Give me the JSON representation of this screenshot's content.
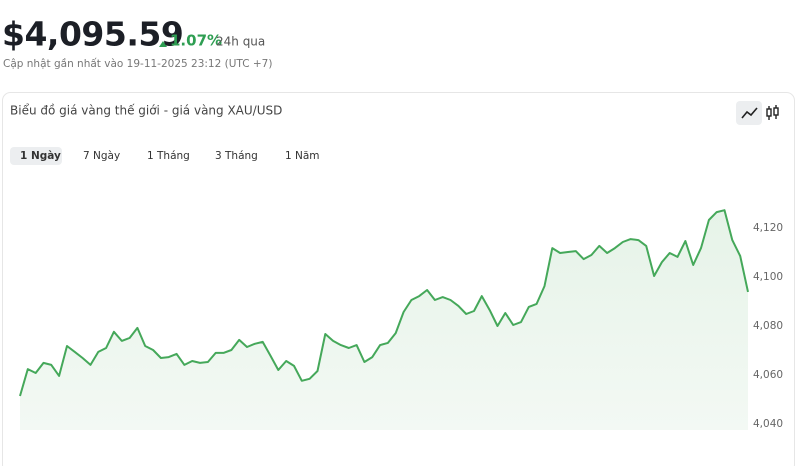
{
  "header": {
    "price": "$4,095.59",
    "change": "1.07%",
    "period": "24h qua",
    "updated": "Cập nhật gần nhất vào 19-11-2025 23:12 (UTC +7)"
  },
  "card": {
    "title": "Biểu đồ giá vàng thế giới - giá vàng XAU/USD",
    "tabs": [
      "1 Ngày",
      "7 Ngày",
      "1 Tháng",
      "3 Tháng",
      "1 Năm"
    ]
  },
  "chart_data": {
    "type": "line",
    "color": "#45a85a",
    "grid": false,
    "values": [
      4051.4,
      4062.4,
      4060.8,
      4064.9,
      4064.1,
      4059.6,
      4071.8,
      4069.4,
      4066.9,
      4064.1,
      4069.4,
      4071.0,
      4077.6,
      4073.9,
      4075.1,
      4079.2,
      4071.8,
      4070.2,
      4066.9,
      4067.3,
      4068.6,
      4064.1,
      4065.7,
      4064.9,
      4065.3,
      4069.0,
      4069.0,
      4070.2,
      4074.3,
      4071.4,
      4072.7,
      4073.5,
      4067.8,
      4062.0,
      4065.7,
      4063.7,
      4057.6,
      4058.4,
      4061.6,
      4076.7,
      4073.9,
      4072.2,
      4071.0,
      4072.2,
      4065.3,
      4067.3,
      4072.2,
      4073.1,
      4077.1,
      4085.7,
      4090.6,
      4092.2,
      4094.7,
      4090.6,
      4091.8,
      4090.6,
      4088.2,
      4084.9,
      4086.1,
      4092.2,
      4086.5,
      4080.0,
      4085.3,
      4080.4,
      4081.6,
      4087.8,
      4089.0,
      4096.3,
      4111.8,
      4109.8,
      4110.2,
      4110.6,
      4107.3,
      4109.0,
      4112.7,
      4109.8,
      4111.8,
      4114.3,
      4115.5,
      4115.1,
      4112.7,
      4100.4,
      4106.1,
      4109.8,
      4108.2,
      4114.7,
      4104.9,
      4111.8,
      4123.3,
      4126.5,
      4127.3,
      4115.1,
      4108.6,
      4093.9
    ],
    "ylim": [
      4037.5,
      4138
    ],
    "yticks": [
      {
        "value": 4040,
        "label": "4,040"
      },
      {
        "value": 4060,
        "label": "4,060"
      },
      {
        "value": 4080,
        "label": "4,080"
      },
      {
        "value": 4100,
        "label": "4,100"
      },
      {
        "value": 4120,
        "label": "4,120"
      }
    ]
  }
}
